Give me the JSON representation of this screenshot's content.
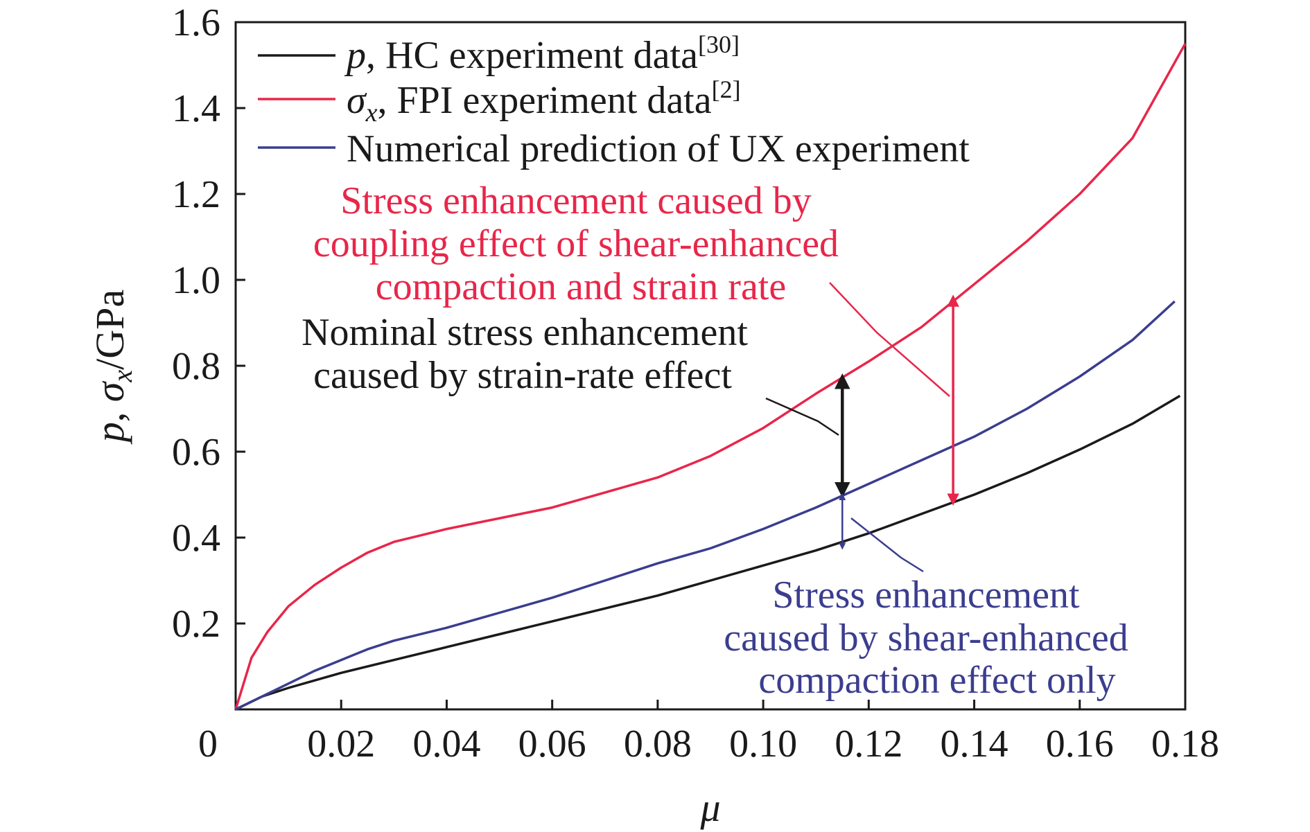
{
  "chart_data": {
    "type": "line",
    "xlabel": "μ",
    "ylabel": "p, σx/GPa",
    "xlim": [
      0,
      0.18
    ],
    "ylim": [
      0,
      1.6
    ],
    "xticks": [
      {
        "value": 0,
        "label": "0"
      },
      {
        "value": 0.02,
        "label": "0.02"
      },
      {
        "value": 0.04,
        "label": "0.04"
      },
      {
        "value": 0.06,
        "label": "0.06"
      },
      {
        "value": 0.08,
        "label": "0.08"
      },
      {
        "value": 0.1,
        "label": "0.10"
      },
      {
        "value": 0.12,
        "label": "0.12"
      },
      {
        "value": 0.14,
        "label": "0.14"
      },
      {
        "value": 0.16,
        "label": "0.16"
      },
      {
        "value": 0.18,
        "label": "0.18"
      }
    ],
    "yticks": [
      {
        "value": 0.2,
        "label": "0.2"
      },
      {
        "value": 0.4,
        "label": "0.4"
      },
      {
        "value": 0.6,
        "label": "0.6"
      },
      {
        "value": 0.8,
        "label": "0.8"
      },
      {
        "value": 1.0,
        "label": "1.0"
      },
      {
        "value": 1.2,
        "label": "1.2"
      },
      {
        "value": 1.4,
        "label": "1.4"
      },
      {
        "value": 1.6,
        "label": "1.6"
      }
    ],
    "grid": false,
    "legend_position": "top-left",
    "series": [
      {
        "name": "p, HC experiment data[30]",
        "color": "#1a1a1a",
        "x": [
          0,
          0.005,
          0.01,
          0.02,
          0.03,
          0.04,
          0.05,
          0.06,
          0.07,
          0.08,
          0.09,
          0.1,
          0.11,
          0.12,
          0.13,
          0.14,
          0.15,
          0.16,
          0.17,
          0.179
        ],
        "y": [
          0,
          0.03,
          0.05,
          0.085,
          0.115,
          0.145,
          0.175,
          0.205,
          0.235,
          0.265,
          0.3,
          0.335,
          0.37,
          0.41,
          0.455,
          0.5,
          0.55,
          0.605,
          0.665,
          0.73
        ]
      },
      {
        "name": "σx, FPI experiment data[2]",
        "color": "#e8264a",
        "x": [
          0,
          0.003,
          0.006,
          0.01,
          0.015,
          0.02,
          0.025,
          0.03,
          0.035,
          0.04,
          0.05,
          0.06,
          0.07,
          0.08,
          0.09,
          0.1,
          0.11,
          0.12,
          0.13,
          0.14,
          0.15,
          0.16,
          0.17,
          0.18
        ],
        "y": [
          0,
          0.12,
          0.18,
          0.24,
          0.29,
          0.33,
          0.365,
          0.39,
          0.405,
          0.42,
          0.445,
          0.47,
          0.505,
          0.54,
          0.59,
          0.655,
          0.735,
          0.81,
          0.89,
          0.99,
          1.09,
          1.2,
          1.33,
          1.55
        ]
      },
      {
        "name": "Numerical prediction of UX experiment",
        "color": "#3b3d8f",
        "x": [
          0,
          0.005,
          0.01,
          0.015,
          0.02,
          0.025,
          0.03,
          0.04,
          0.05,
          0.06,
          0.07,
          0.08,
          0.09,
          0.1,
          0.11,
          0.12,
          0.13,
          0.14,
          0.15,
          0.16,
          0.17,
          0.178
        ],
        "y": [
          0,
          0.03,
          0.06,
          0.09,
          0.115,
          0.14,
          0.16,
          0.19,
          0.225,
          0.26,
          0.3,
          0.34,
          0.375,
          0.42,
          0.47,
          0.525,
          0.58,
          0.635,
          0.7,
          0.775,
          0.86,
          0.95
        ]
      }
    ],
    "annotations": [
      {
        "text_lines": [
          "Stress enhancement caused by",
          "coupling effect of shear-enhanced",
          "compaction and strain rate"
        ],
        "color": "#e8264a",
        "arrow": {
          "x": 0.136,
          "y_from": 0.48,
          "y_to": 0.96
        }
      },
      {
        "text_lines": [
          "Nominal stress enhancement",
          "caused by strain-rate effect"
        ],
        "color": "#1a1a1a",
        "arrow": {
          "x": 0.115,
          "y_from": 0.5,
          "y_to": 0.775
        }
      },
      {
        "text_lines": [
          "Stress enhancement",
          "caused by shear-enhanced",
          "compaction effect only"
        ],
        "color": "#3b3d8f",
        "arrow": {
          "x": 0.115,
          "y_from": 0.375,
          "y_to": 0.5
        }
      }
    ]
  }
}
